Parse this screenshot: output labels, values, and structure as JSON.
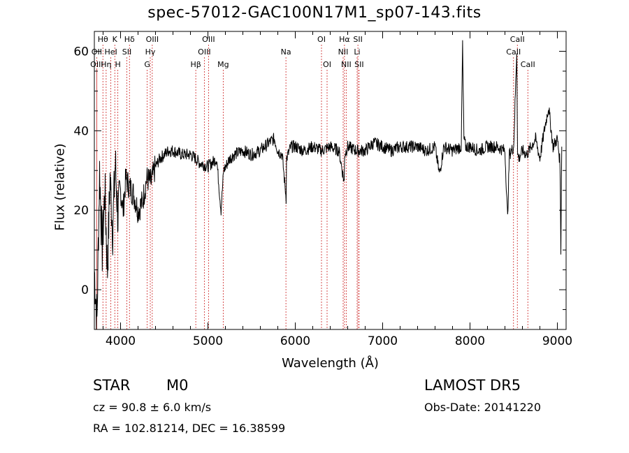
{
  "chart_data": {
    "type": "line",
    "title": "spec-57012-GAC100N17M1_sp07-143.fits",
    "xlabel": "Wavelength (Å)",
    "ylabel": "Flux (relative)",
    "xlim": [
      3700,
      9100
    ],
    "ylim": [
      -10,
      65
    ],
    "xticks": [
      4000,
      5000,
      6000,
      7000,
      8000,
      9000
    ],
    "yticks": [
      0,
      20,
      40,
      60
    ],
    "grid": false,
    "series": [
      {
        "x": [
          3700,
          3730,
          3760,
          3790,
          3820,
          3850,
          3880,
          3910,
          3940,
          3970,
          4000,
          4030,
          4060,
          4100,
          4150,
          4200,
          4250,
          4300,
          4350,
          4400,
          4450,
          4500,
          4550,
          4600,
          4700,
          4800,
          4860,
          4900,
          5000,
          5100,
          5150,
          5180,
          5250,
          5300,
          5400,
          5500,
          5600,
          5700,
          5760,
          5800,
          5850,
          5895,
          5900,
          5950,
          6000,
          6100,
          6200,
          6300,
          6400,
          6500,
          6560,
          6565,
          6600,
          6700,
          6800,
          6900,
          7000,
          7100,
          7200,
          7300,
          7400,
          7500,
          7600,
          7650,
          7700,
          7800,
          7900,
          7915,
          7930,
          7950,
          8000,
          8100,
          8200,
          8300,
          8400,
          8430,
          8450,
          8500,
          8535,
          8545,
          8560,
          8600,
          8650,
          8700,
          8750,
          8800,
          8850,
          8900,
          8950,
          9000,
          9030,
          9040,
          9050
        ],
        "y": [
          5,
          -8,
          30,
          10,
          25,
          5,
          28,
          15,
          32,
          18,
          25,
          20,
          28,
          26,
          24,
          20,
          22,
          28,
          27,
          31,
          33,
          34,
          35,
          35,
          34,
          34,
          33,
          32,
          31,
          33,
          20,
          30,
          33,
          34,
          35,
          34,
          35,
          37,
          38,
          35,
          34,
          23,
          33,
          36,
          36,
          35,
          36,
          35,
          36,
          35,
          27,
          34,
          36,
          35,
          35,
          37,
          36,
          35,
          36,
          36,
          36,
          35,
          36,
          29,
          36,
          35,
          36,
          62,
          38,
          36,
          36,
          35,
          36,
          36,
          35,
          18,
          34,
          36,
          60,
          34,
          33,
          35,
          34,
          36,
          38,
          33,
          40,
          46,
          36,
          38,
          32,
          10,
          36
        ]
      }
    ],
    "lines": [
      {
        "label": "Hθ",
        "x": 3798,
        "row": 0
      },
      {
        "label": "OII",
        "x": 3727,
        "row": 1
      },
      {
        "label": "OIII",
        "x": 3727,
        "row": 2
      },
      {
        "label": "K",
        "x": 3934,
        "row": 0
      },
      {
        "label": "HeI",
        "x": 3889,
        "row": 1
      },
      {
        "label": "Hη",
        "x": 3835,
        "row": 2
      },
      {
        "label": "H",
        "x": 3969,
        "row": 2
      },
      {
        "label": "Hδ",
        "x": 4102,
        "row": 0
      },
      {
        "label": "SII",
        "x": 4072,
        "row": 1
      },
      {
        "label": "OIII",
        "x": 4363,
        "row": 0
      },
      {
        "label": "Hγ",
        "x": 4340,
        "row": 1
      },
      {
        "label": "G",
        "x": 4305,
        "row": 2
      },
      {
        "label": "OIII",
        "x": 5007,
        "row": 0
      },
      {
        "label": "OIII",
        "x": 4959,
        "row": 1
      },
      {
        "label": "Hβ",
        "x": 4861,
        "row": 2
      },
      {
        "label": "Mg",
        "x": 5175,
        "row": 2
      },
      {
        "label": "Na",
        "x": 5893,
        "row": 1
      },
      {
        "label": "OI",
        "x": 6300,
        "row": 0
      },
      {
        "label": "OI",
        "x": 6364,
        "row": 2
      },
      {
        "label": "Hα",
        "x": 6563,
        "row": 0
      },
      {
        "label": "SII",
        "x": 6717,
        "row": 0
      },
      {
        "label": "NII",
        "x": 6548,
        "row": 1
      },
      {
        "label": "Li",
        "x": 6708,
        "row": 1
      },
      {
        "label": "NII",
        "x": 6583,
        "row": 2
      },
      {
        "label": "SII",
        "x": 6731,
        "row": 2
      },
      {
        "label": "CaII",
        "x": 8542,
        "row": 0
      },
      {
        "label": "CaII",
        "x": 8498,
        "row": 1
      },
      {
        "label": "CaII",
        "x": 8662,
        "row": 2
      }
    ]
  },
  "info": {
    "class": "STAR",
    "subclass": "M0",
    "survey": "LAMOST DR5",
    "cz": "cz = 90.8 ± 6.0 km/s",
    "obs_date": "Obs-Date: 20141220",
    "coords": "RA = 102.81214, DEC =  16.38599"
  },
  "colors": {
    "axis": "#000000",
    "spectrum": "#000000",
    "line_marker": "#cc2222"
  }
}
